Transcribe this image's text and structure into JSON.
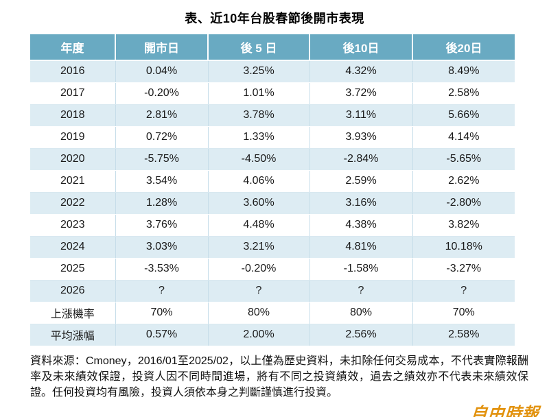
{
  "title": "表、近10年台股春節後開市表現",
  "chart_data": {
    "type": "table",
    "title": "表、近10年台股春節後開市表現",
    "columns": [
      "年度",
      "開市日",
      "後 5 日",
      "後10日",
      "後20日"
    ],
    "rows": [
      [
        "2016",
        "0.04%",
        "3.25%",
        "4.32%",
        "8.49%"
      ],
      [
        "2017",
        "-0.20%",
        "1.01%",
        "3.72%",
        "2.58%"
      ],
      [
        "2018",
        "2.81%",
        "3.78%",
        "3.11%",
        "5.66%"
      ],
      [
        "2019",
        "0.72%",
        "1.33%",
        "3.93%",
        "4.14%"
      ],
      [
        "2020",
        "-5.75%",
        "-4.50%",
        "-2.84%",
        "-5.65%"
      ],
      [
        "2021",
        "3.54%",
        "4.06%",
        "2.59%",
        "2.62%"
      ],
      [
        "2022",
        "1.28%",
        "3.60%",
        "3.16%",
        "-2.80%"
      ],
      [
        "2023",
        "3.76%",
        "4.48%",
        "4.38%",
        "3.82%"
      ],
      [
        "2024",
        "3.03%",
        "3.21%",
        "4.81%",
        "10.18%"
      ],
      [
        "2025",
        "-3.53%",
        "-0.20%",
        "-1.58%",
        "-3.27%"
      ],
      [
        "2026",
        "?",
        "?",
        "?",
        "?"
      ],
      [
        "上漲機率",
        "70%",
        "80%",
        "80%",
        "70%"
      ],
      [
        "平均漲幅",
        "0.57%",
        "2.00%",
        "2.56%",
        "2.58%"
      ]
    ],
    "layout": {
      "zebra_striping": "rows 2016,2018,2020,2022,2024,2026,平均漲幅 shaded light blue; others white",
      "header_style": "teal background with white bold text"
    }
  },
  "footer": {
    "text": "資料來源：Cmoney，2016/01至2025/02，以上僅為歷史資料，未扣除任何交易成本，不代表實際報酬率及未來績效保證，投資人因不同時間進場，將有不同之投資績效，過去之績效亦不代表未來績效保證。任何投資均有風險，投資人須依本身之判斷謹慎進行投資。"
  },
  "watermark": {
    "text": "自由時報"
  },
  "colors": {
    "header_bg": "#69aac2",
    "header_text": "#ffffff",
    "row_alt_bg": "#ddecf3",
    "row_bg": "#ffffff",
    "grid_line": "#c6dde9",
    "body_text": "#1a1a1a",
    "watermark": "#e2920e"
  }
}
